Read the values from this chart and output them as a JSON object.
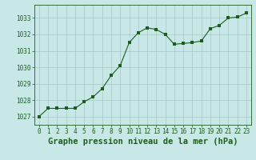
{
  "x": [
    0,
    1,
    2,
    3,
    4,
    5,
    6,
    7,
    8,
    9,
    10,
    11,
    12,
    13,
    14,
    15,
    16,
    17,
    18,
    19,
    20,
    21,
    22,
    23
  ],
  "y": [
    1027.0,
    1027.5,
    1027.5,
    1027.5,
    1027.5,
    1027.9,
    1028.2,
    1028.7,
    1029.5,
    1030.1,
    1031.5,
    1032.1,
    1032.4,
    1032.3,
    1032.0,
    1031.4,
    1031.45,
    1031.5,
    1031.6,
    1032.35,
    1032.55,
    1033.0,
    1033.05,
    1033.3
  ],
  "line_color": "#1e5c1e",
  "marker_color": "#1e5c1e",
  "bg_color": "#c8e8e8",
  "grid_color": "#a8c8c8",
  "title": "Graphe pression niveau de la mer (hPa)",
  "ylim": [
    1026.5,
    1033.8
  ],
  "yticks": [
    1027,
    1028,
    1029,
    1030,
    1031,
    1032,
    1033
  ],
  "xlim": [
    -0.5,
    23.5
  ],
  "xticks": [
    0,
    1,
    2,
    3,
    4,
    5,
    6,
    7,
    8,
    9,
    10,
    11,
    12,
    13,
    14,
    15,
    16,
    17,
    18,
    19,
    20,
    21,
    22,
    23
  ],
  "title_fontsize": 7.5,
  "tick_fontsize": 5.5
}
